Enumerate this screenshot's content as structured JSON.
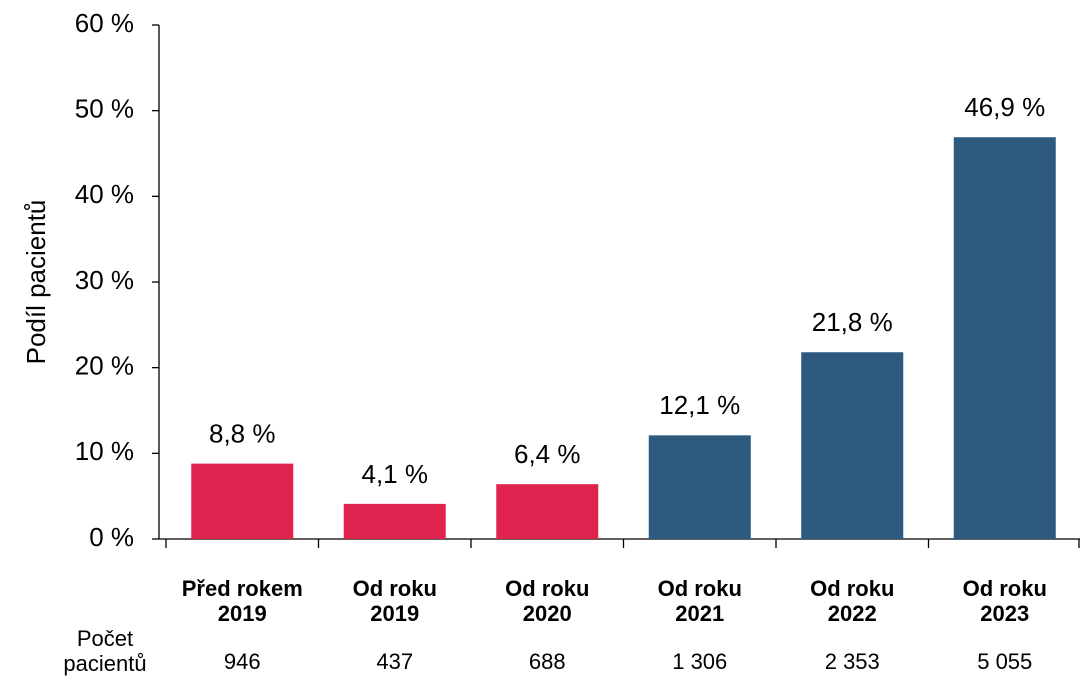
{
  "chart_data": {
    "type": "bar",
    "ylabel": "Podíl pacientů",
    "categories": [
      "Před rokem 2019",
      "Od roku 2019",
      "Od roku 2020",
      "Od roku 2021",
      "Od roku 2022",
      "Od roku 2023"
    ],
    "values": [
      8.8,
      4.1,
      6.4,
      12.1,
      21.8,
      46.9
    ],
    "value_labels": [
      "8,8 %",
      "4,1 %",
      "6,4 %",
      "12,1 %",
      "21,8 %",
      "46,9 %"
    ],
    "colors": [
      "#e0234e",
      "#e0234e",
      "#e0234e",
      "#2f5a80",
      "#2f5a80",
      "#2f5a80"
    ],
    "ylim": [
      0,
      60
    ],
    "yticks": [
      {
        "value": 0,
        "label": "0 %"
      },
      {
        "value": 10,
        "label": "10 %"
      },
      {
        "value": 20,
        "label": "20 %"
      },
      {
        "value": 30,
        "label": "30 %"
      },
      {
        "value": 40,
        "label": "40 %"
      },
      {
        "value": 50,
        "label": "50 %"
      },
      {
        "value": 60,
        "label": "60 %"
      }
    ],
    "grid": false,
    "count_row": {
      "label": "Počet pacientů",
      "values": [
        "946",
        "437",
        "688",
        "1 306",
        "2 353",
        "5 055"
      ]
    }
  }
}
